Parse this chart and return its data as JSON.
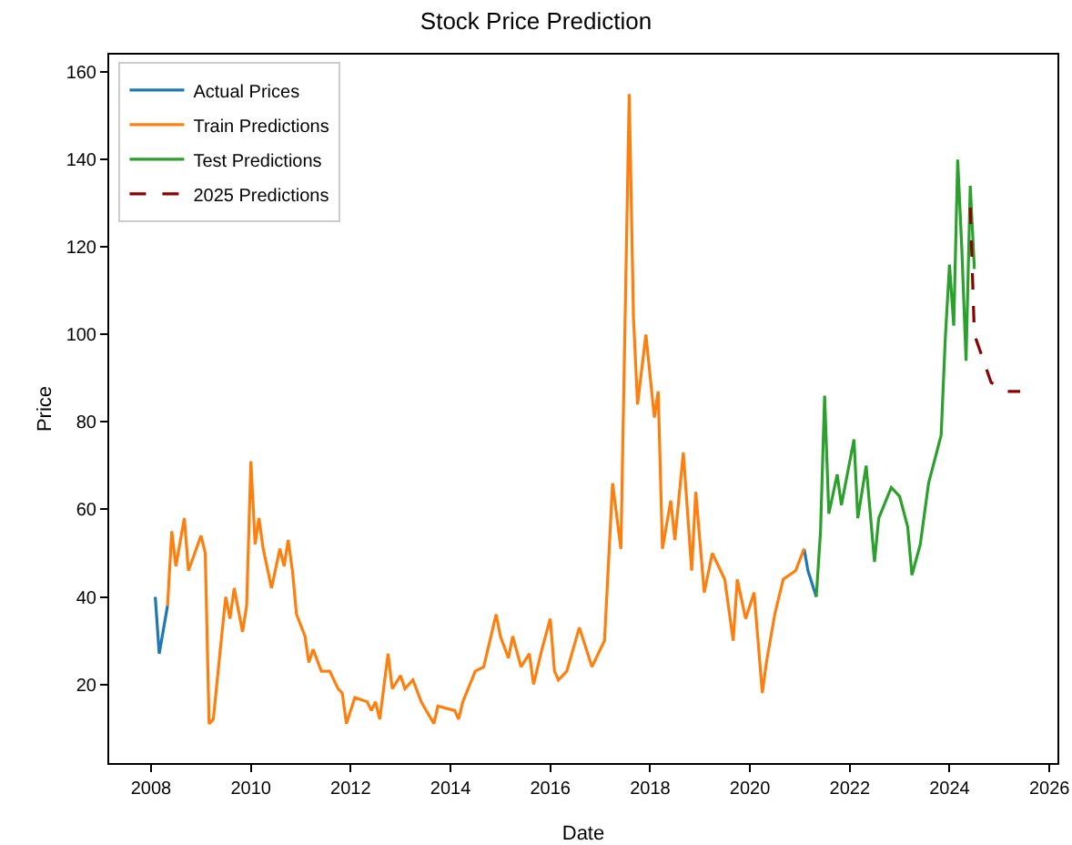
{
  "chart_data": {
    "type": "line",
    "title": "Stock Price Prediction",
    "xlabel": "Date",
    "ylabel": "Price",
    "xlim": [
      "2007-03",
      "2026-03"
    ],
    "xticks": [
      "2008",
      "2010",
      "2012",
      "2014",
      "2016",
      "2018",
      "2020",
      "2022",
      "2024",
      "2026"
    ],
    "ylim": [
      2,
      164
    ],
    "yticks": [
      20,
      40,
      60,
      80,
      100,
      120,
      140,
      160
    ],
    "grid": false,
    "legend": "top left",
    "line_style": "solid",
    "series": [
      {
        "name": "Actual Prices",
        "color": "#1f77b4",
        "x": [
          "2008-02",
          "2008-03",
          "2008-05",
          "2008-06",
          "2008-07",
          "2008-09",
          "2008-10",
          "2009-01",
          "2009-02",
          "2009-03",
          "2009-04",
          "2009-06",
          "2009-07",
          "2009-08",
          "2009-09",
          "2009-11",
          "2009-12",
          "2010-01",
          "2010-02",
          "2010-03",
          "2010-04",
          "2010-06",
          "2010-08",
          "2010-09",
          "2010-10",
          "2010-11",
          "2010-12",
          "2011-02",
          "2011-03",
          "2011-04",
          "2011-06",
          "2011-08",
          "2011-10",
          "2011-11",
          "2011-12",
          "2012-02",
          "2012-05",
          "2012-06",
          "2012-07",
          "2012-08",
          "2012-10",
          "2012-11",
          "2013-01",
          "2013-02",
          "2013-04",
          "2013-06",
          "2013-09",
          "2013-10",
          "2014-02",
          "2014-03",
          "2014-04",
          "2014-07",
          "2014-09",
          "2014-12",
          "2015-01",
          "2015-03",
          "2015-04",
          "2015-06",
          "2015-08",
          "2015-09",
          "2015-11",
          "2016-01",
          "2016-02",
          "2016-03",
          "2016-05",
          "2016-08",
          "2016-11",
          "2017-02",
          "2017-04",
          "2017-06",
          "2017-08",
          "2017-09",
          "2017-10",
          "2017-12",
          "2018-02",
          "2018-03",
          "2018-04",
          "2018-06",
          "2018-07",
          "2018-09",
          "2018-11",
          "2018-12",
          "2019-02",
          "2019-04",
          "2019-07",
          "2019-09",
          "2019-10",
          "2019-12",
          "2020-02",
          "2020-04",
          "2020-05",
          "2020-07",
          "2020-09",
          "2020-12",
          "2021-02",
          "2021-03",
          "2021-05"
        ],
        "values": [
          40,
          27,
          38,
          null,
          null,
          null,
          null,
          null,
          null,
          null,
          null,
          null,
          null,
          null,
          null,
          null,
          null,
          null,
          null,
          null,
          null,
          null,
          null,
          null,
          null,
          null,
          null,
          null,
          null,
          null,
          null,
          null,
          null,
          null,
          null,
          null,
          null,
          null,
          null,
          null,
          null,
          null,
          null,
          null,
          null,
          null,
          null,
          null,
          null,
          null,
          null,
          null,
          null,
          null,
          null,
          null,
          null,
          null,
          null,
          null,
          null,
          null,
          null,
          null,
          null,
          null,
          null,
          null,
          null,
          null,
          null,
          null,
          null,
          null,
          null,
          null,
          null,
          null,
          null,
          null,
          null,
          null,
          null,
          null,
          null,
          null,
          null,
          null,
          null,
          null,
          null,
          null,
          null,
          null,
          51,
          46,
          40
        ]
      },
      {
        "name": "Train Predictions",
        "color": "#ff7f0e",
        "x": [
          "2008-05",
          "2008-06",
          "2008-07",
          "2008-09",
          "2008-10",
          "2009-01",
          "2009-02",
          "2009-03",
          "2009-04",
          "2009-06",
          "2009-07",
          "2009-08",
          "2009-09",
          "2009-11",
          "2009-12",
          "2010-01",
          "2010-02",
          "2010-03",
          "2010-04",
          "2010-06",
          "2010-08",
          "2010-09",
          "2010-10",
          "2010-11",
          "2010-12",
          "2011-02",
          "2011-03",
          "2011-04",
          "2011-06",
          "2011-08",
          "2011-10",
          "2011-11",
          "2011-12",
          "2012-02",
          "2012-05",
          "2012-06",
          "2012-07",
          "2012-08",
          "2012-10",
          "2012-11",
          "2013-01",
          "2013-02",
          "2013-04",
          "2013-06",
          "2013-09",
          "2013-10",
          "2014-02",
          "2014-03",
          "2014-04",
          "2014-07",
          "2014-09",
          "2014-12",
          "2015-01",
          "2015-03",
          "2015-04",
          "2015-06",
          "2015-08",
          "2015-09",
          "2015-11",
          "2016-01",
          "2016-02",
          "2016-03",
          "2016-05",
          "2016-08",
          "2016-11",
          "2017-02",
          "2017-04",
          "2017-06",
          "2017-08",
          "2017-09",
          "2017-10",
          "2017-12",
          "2018-02",
          "2018-03",
          "2018-04",
          "2018-06",
          "2018-07",
          "2018-09",
          "2018-11",
          "2018-12",
          "2019-02",
          "2019-04",
          "2019-07",
          "2019-09",
          "2019-10",
          "2019-12",
          "2020-02",
          "2020-04",
          "2020-05",
          "2020-07",
          "2020-09",
          "2020-12",
          "2021-02"
        ],
        "values": [
          38,
          55,
          47,
          58,
          46,
          54,
          50,
          11,
          12,
          31,
          40,
          35,
          42,
          32,
          38,
          71,
          52,
          58,
          51,
          42,
          51,
          47,
          53,
          46,
          36,
          31,
          25,
          28,
          23,
          23,
          19,
          18,
          11,
          17,
          16,
          14,
          16,
          12,
          27,
          19,
          22,
          19,
          21,
          16,
          11,
          15,
          14,
          12,
          16,
          23,
          24,
          36,
          31,
          26,
          31,
          24,
          27,
          20,
          28,
          35,
          23,
          21,
          23,
          33,
          24,
          30,
          66,
          51,
          155,
          104,
          84,
          100,
          81,
          87,
          51,
          62,
          53,
          73,
          46,
          64,
          41,
          50,
          44,
          30,
          44,
          35,
          41,
          18,
          25,
          36,
          44,
          46,
          51
        ]
      },
      {
        "name": "Test Predictions",
        "color": "#2ca02c",
        "x": [
          "2021-05",
          "2021-06",
          "2021-07",
          "2021-08",
          "2021-10",
          "2021-11",
          "2022-02",
          "2022-03",
          "2022-05",
          "2022-07",
          "2022-08",
          "2022-11",
          "2023-01",
          "2023-03",
          "2023-04",
          "2023-06",
          "2023-08",
          "2023-11",
          "2023-12",
          "2024-01",
          "2024-02",
          "2024-03",
          "2024-04",
          "2024-05",
          "2024-06",
          "2024-07"
        ],
        "values": [
          40,
          55,
          86,
          59,
          68,
          61,
          76,
          58,
          70,
          48,
          58,
          65,
          63,
          56,
          45,
          52,
          66,
          77,
          99,
          116,
          102,
          140,
          119,
          94,
          134,
          115
        ]
      },
      {
        "name": "2025 Predictions",
        "color": "#8b0000",
        "line_style": "dashed",
        "x": [
          "2024-06",
          "2024-07",
          "2024-11",
          "2025-03",
          "2025-06"
        ],
        "values": [
          129,
          100,
          89,
          87,
          87
        ]
      }
    ]
  }
}
